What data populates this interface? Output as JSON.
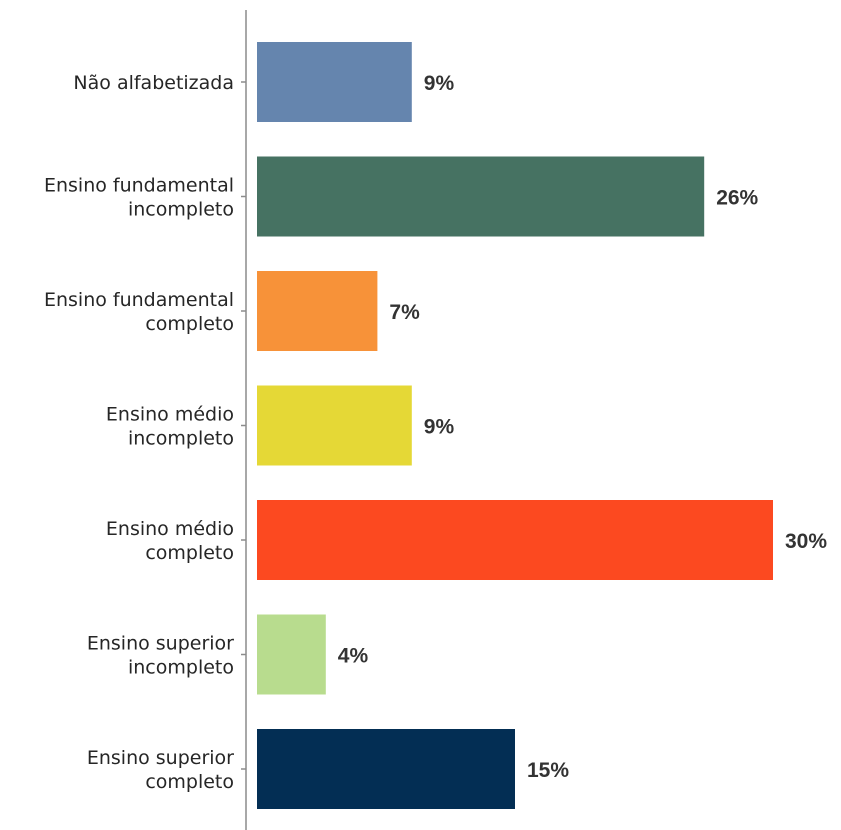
{
  "chart_data": {
    "type": "bar",
    "orientation": "horizontal",
    "title": "",
    "xlabel": "",
    "ylabel": "",
    "xlim": [
      0,
      30
    ],
    "grid": false,
    "legend": "none",
    "categories": [
      [
        "Não alfabetizada"
      ],
      [
        "Ensino fundamental",
        "incompleto"
      ],
      [
        "Ensino fundamental",
        "completo"
      ],
      [
        "Ensino médio",
        "incompleto"
      ],
      [
        "Ensino médio",
        "completo"
      ],
      [
        "Ensino superior",
        "incompleto"
      ],
      [
        "Ensino superior",
        "completo"
      ]
    ],
    "values": [
      9,
      26,
      7,
      9,
      30,
      4,
      15
    ],
    "value_labels": [
      "9%",
      "26%",
      "7%",
      "9%",
      "30%",
      "4%",
      "15%"
    ],
    "colors": [
      "#6585AE",
      "#467262",
      "#F79239",
      "#E5D836",
      "#FC4920",
      "#B8DC8E",
      "#032E54"
    ]
  }
}
